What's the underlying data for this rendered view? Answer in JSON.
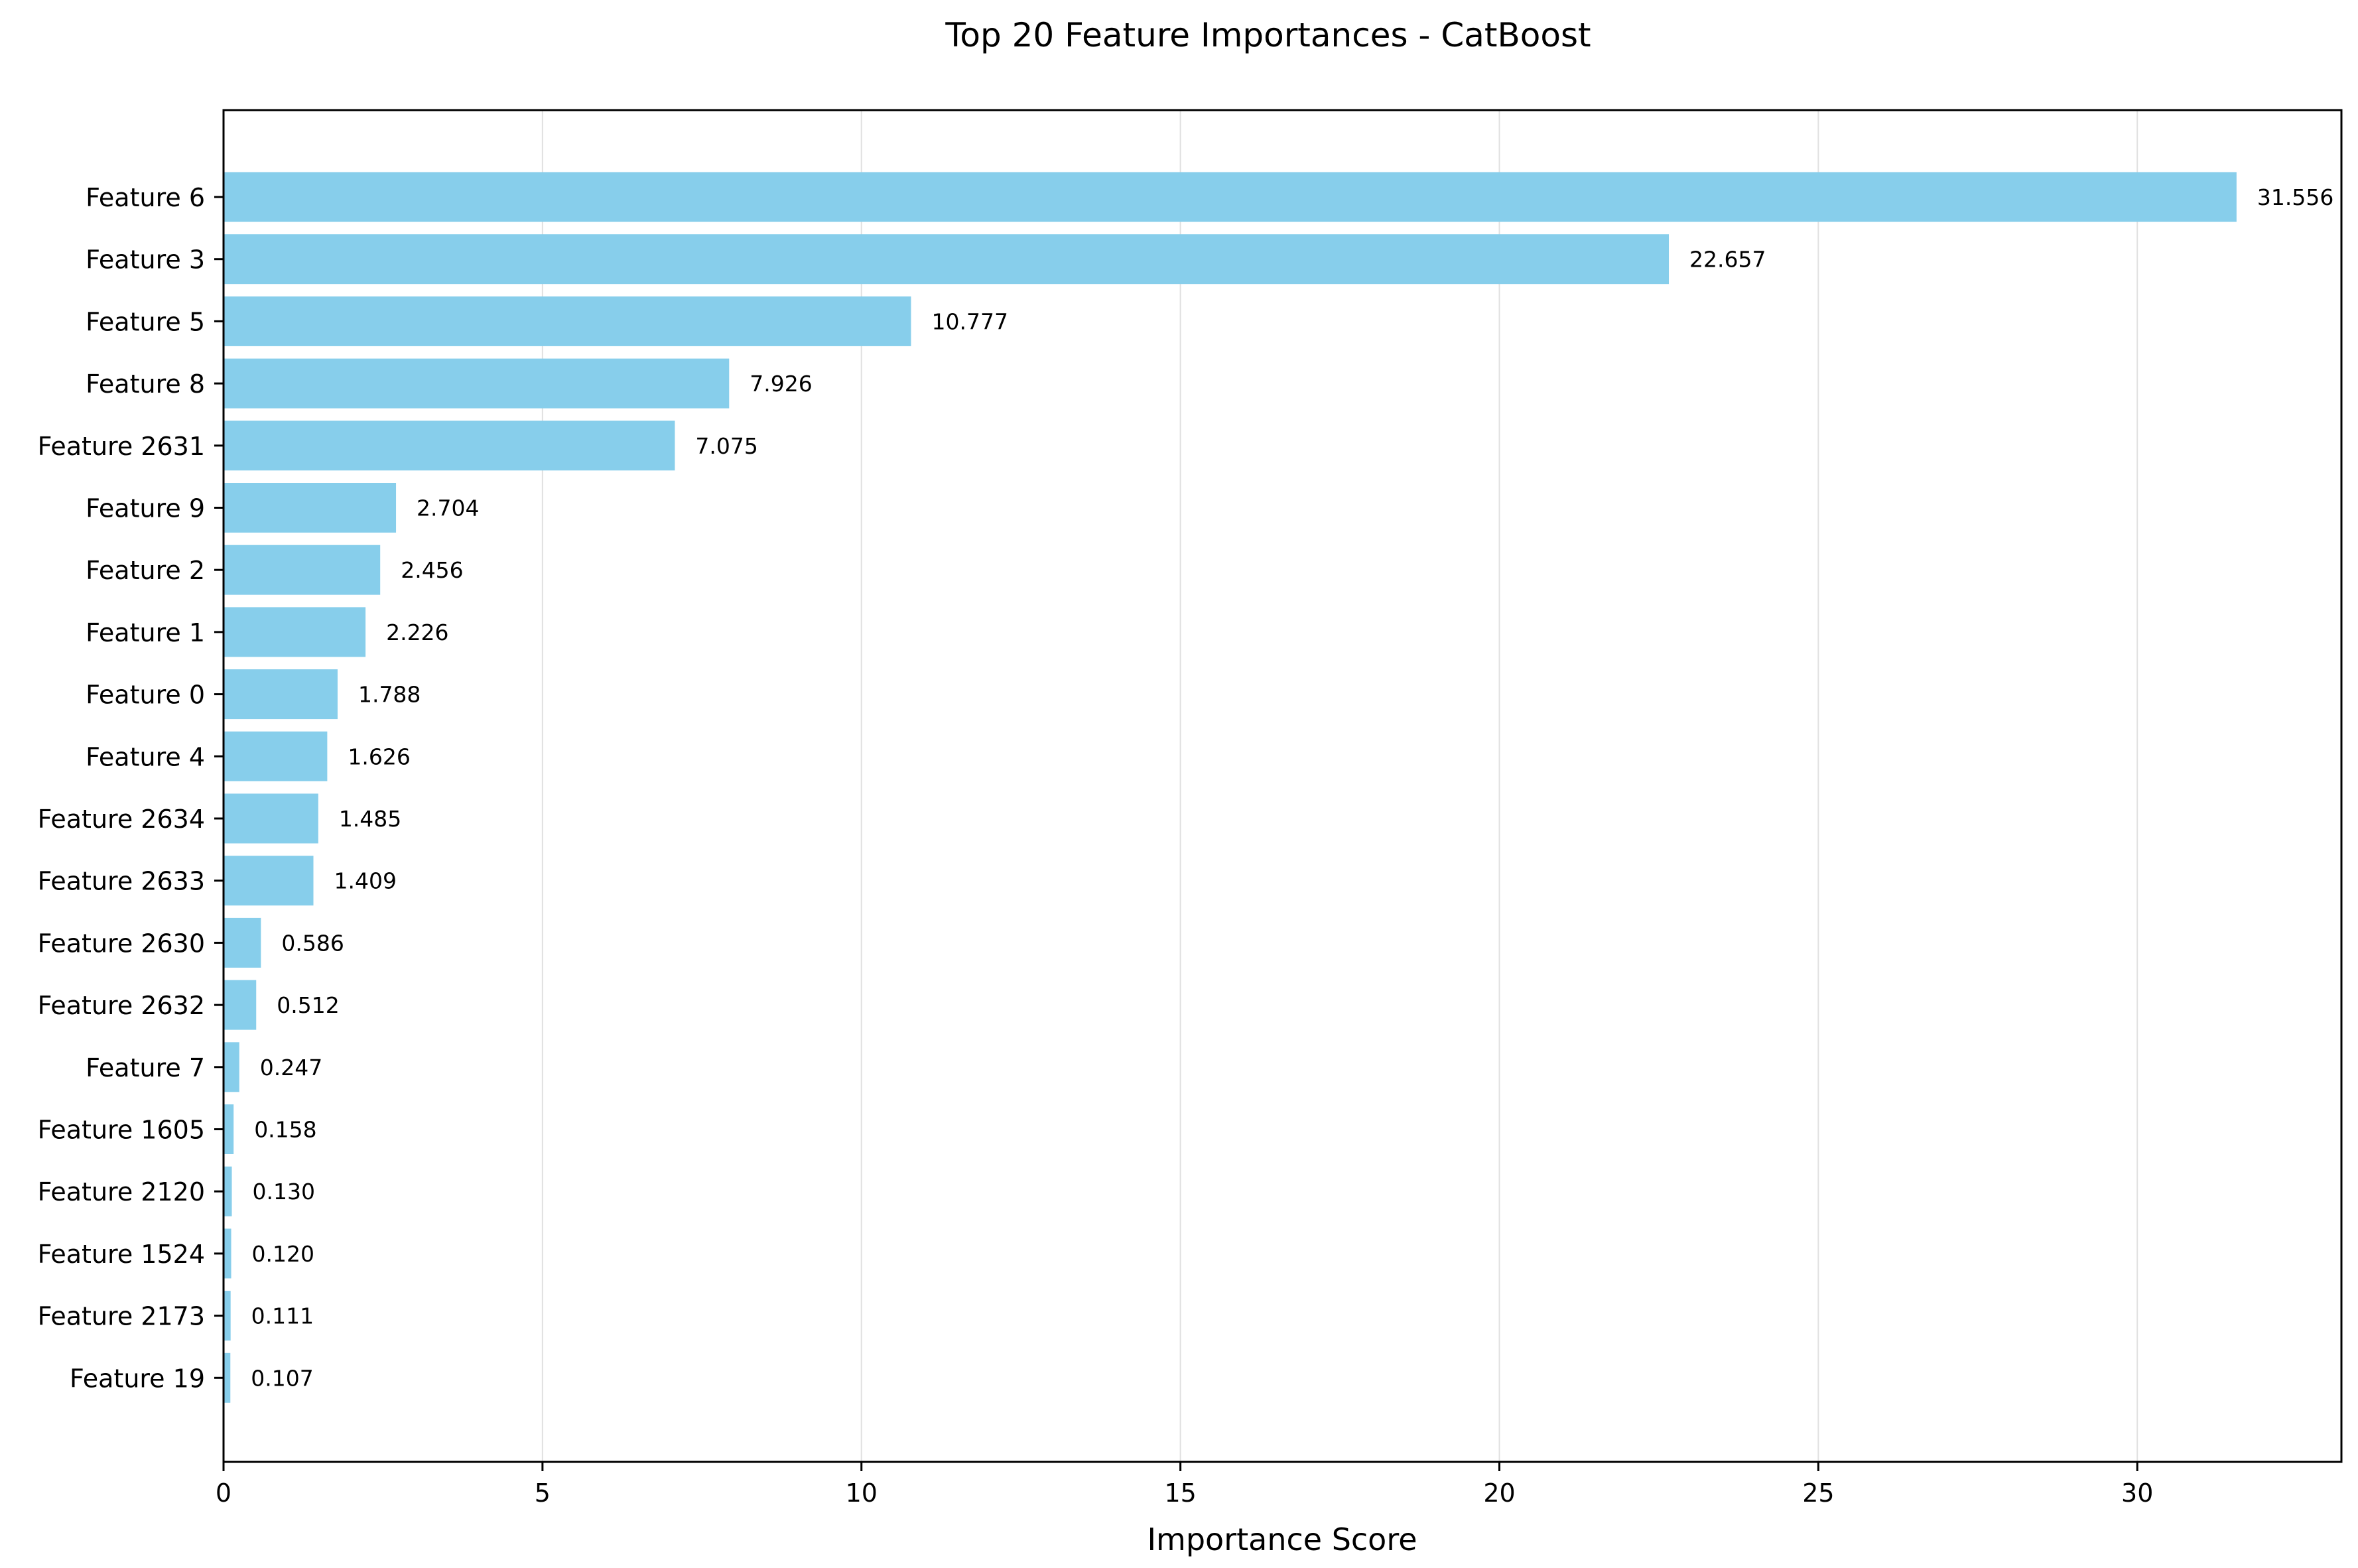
{
  "chart_data": {
    "type": "bar",
    "orientation": "horizontal",
    "title": "Top 20 Feature Importances - CatBoost",
    "xlabel": "Importance Score",
    "ylabel": "",
    "xlim": [
      0,
      33.2
    ],
    "xticks": [
      0,
      5,
      10,
      15,
      20,
      25,
      30
    ],
    "grid": {
      "x": true,
      "y": false,
      "color": "#e0e0e0"
    },
    "bar_color": "#87ceeb",
    "categories": [
      "Feature 6",
      "Feature 3",
      "Feature 5",
      "Feature 8",
      "Feature 2631",
      "Feature 9",
      "Feature 2",
      "Feature 1",
      "Feature 0",
      "Feature 4",
      "Feature 2634",
      "Feature 2633",
      "Feature 2630",
      "Feature 2632",
      "Feature 7",
      "Feature 1605",
      "Feature 2120",
      "Feature 1524",
      "Feature 2173",
      "Feature 19"
    ],
    "values": [
      31.556,
      22.657,
      10.777,
      7.926,
      7.075,
      2.704,
      2.456,
      2.226,
      1.788,
      1.626,
      1.485,
      1.409,
      0.586,
      0.512,
      0.247,
      0.158,
      0.13,
      0.12,
      0.111,
      0.107
    ],
    "value_labels": [
      "31.556",
      "22.657",
      "10.777",
      "7.926",
      "7.075",
      "2.704",
      "2.456",
      "2.226",
      "1.788",
      "1.626",
      "1.485",
      "1.409",
      "0.586",
      "0.512",
      "0.247",
      "0.158",
      "0.130",
      "0.120",
      "0.111",
      "0.107"
    ]
  }
}
